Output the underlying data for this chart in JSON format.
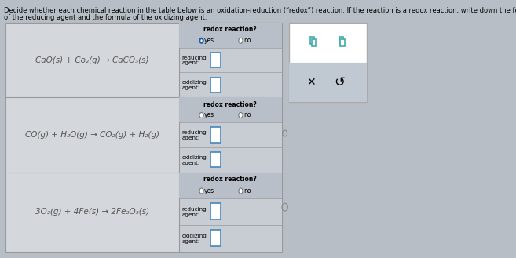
{
  "title_text": "Decide whether each chemical reaction in the table below is an oxidation-reduction (“redox”) reaction. If the reaction is a redox reaction, write down the formula",
  "title_text2": "of the reducing agent and the formula of the oxidizing agent.",
  "bg_color": "#b8bec6",
  "table_left_bg": "#d4d8dc",
  "table_right_bg": "#c8cdd4",
  "header_bg": "#b8bfc8",
  "reactions": [
    "CaO(s) + Čo₂(g) → CaCO₃(s)",
    "CO(g) + H₂O(g) → CO₂(g) + H₂(g)",
    "3O₂(g) + 4Fe(s) → 2Fe₂O₃(s)"
  ],
  "reaction1_display": "CaO(s) + Co₂(g) → CaCO₃(s)",
  "reaction2_display": "CO(g) + H₂O(g) → CO₂(g) + H₂(g)",
  "reaction3_display": "3O₂(g) + 4Fe(s) → 2Fe₂O₃(s)",
  "panel_bg": "#ffffff",
  "panel_bottom_bg": "#c0c8d2",
  "input_box_color": "#4488bb",
  "radio_filled_color": "#1a5ea8",
  "grid_color": "#999999",
  "text_color": "#222222",
  "react_text_color": "#555555"
}
